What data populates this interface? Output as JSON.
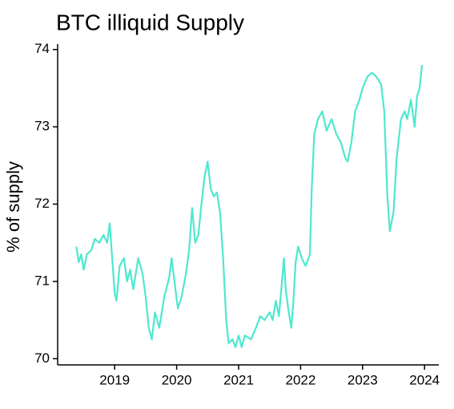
{
  "chart_data": {
    "type": "line",
    "title": "BTC illiquid Supply",
    "ylabel": "% of supply",
    "xlim": [
      2018.08,
      2024.23
    ],
    "xticks": [
      2019,
      2020,
      2021,
      2022,
      2023,
      2024
    ],
    "ylim": [
      69.92,
      74.07
    ],
    "yticks": [
      70,
      71,
      72,
      73,
      74
    ],
    "grid": false,
    "series": [
      {
        "name": "BTC illiquid Supply",
        "color": "#4ee8cf",
        "x": [
          2018.38,
          2018.42,
          2018.46,
          2018.5,
          2018.55,
          2018.62,
          2018.68,
          2018.75,
          2018.82,
          2018.88,
          2018.92,
          2018.96,
          2019.0,
          2019.03,
          2019.08,
          2019.15,
          2019.2,
          2019.25,
          2019.3,
          2019.38,
          2019.45,
          2019.5,
          2019.55,
          2019.6,
          2019.65,
          2019.72,
          2019.8,
          2019.88,
          2019.92,
          2019.98,
          2020.02,
          2020.08,
          2020.15,
          2020.2,
          2020.25,
          2020.3,
          2020.35,
          2020.4,
          2020.45,
          2020.5,
          2020.55,
          2020.6,
          2020.65,
          2020.7,
          2020.75,
          2020.8,
          2020.84,
          2020.9,
          2020.95,
          2021.0,
          2021.05,
          2021.1,
          2021.2,
          2021.28,
          2021.35,
          2021.42,
          2021.5,
          2021.55,
          2021.6,
          2021.65,
          2021.7,
          2021.73,
          2021.76,
          2021.8,
          2021.85,
          2021.88,
          2021.92,
          2021.96,
          2022.02,
          2022.08,
          2022.15,
          2022.18,
          2022.22,
          2022.28,
          2022.35,
          2022.42,
          2022.5,
          2022.58,
          2022.65,
          2022.72,
          2022.76,
          2022.82,
          2022.88,
          2022.95,
          2023.0,
          2023.08,
          2023.15,
          2023.22,
          2023.3,
          2023.35,
          2023.4,
          2023.44,
          2023.5,
          2023.55,
          2023.62,
          2023.68,
          2023.72,
          2023.78,
          2023.84,
          2023.88,
          2023.92,
          2023.96
        ],
        "values": [
          71.45,
          71.25,
          71.35,
          71.15,
          71.35,
          71.4,
          71.55,
          71.5,
          71.6,
          71.5,
          71.75,
          71.3,
          70.85,
          70.75,
          71.2,
          71.3,
          71.0,
          71.15,
          70.9,
          71.3,
          71.1,
          70.8,
          70.4,
          70.25,
          70.6,
          70.4,
          70.8,
          71.05,
          71.3,
          70.9,
          70.65,
          70.8,
          71.1,
          71.4,
          71.95,
          71.5,
          71.6,
          72.0,
          72.35,
          72.55,
          72.2,
          72.1,
          72.15,
          71.9,
          71.3,
          70.5,
          70.2,
          70.25,
          70.15,
          70.3,
          70.15,
          70.3,
          70.25,
          70.4,
          70.55,
          70.5,
          70.6,
          70.5,
          70.75,
          70.55,
          71.0,
          71.3,
          70.9,
          70.65,
          70.4,
          70.7,
          71.25,
          71.45,
          71.3,
          71.2,
          71.35,
          72.2,
          72.9,
          73.1,
          73.2,
          72.95,
          73.1,
          72.9,
          72.8,
          72.6,
          72.55,
          72.8,
          73.2,
          73.35,
          73.5,
          73.65,
          73.7,
          73.65,
          73.55,
          73.2,
          72.1,
          71.65,
          71.9,
          72.6,
          73.1,
          73.2,
          73.1,
          73.35,
          73.0,
          73.4,
          73.5,
          73.8
        ]
      }
    ]
  }
}
